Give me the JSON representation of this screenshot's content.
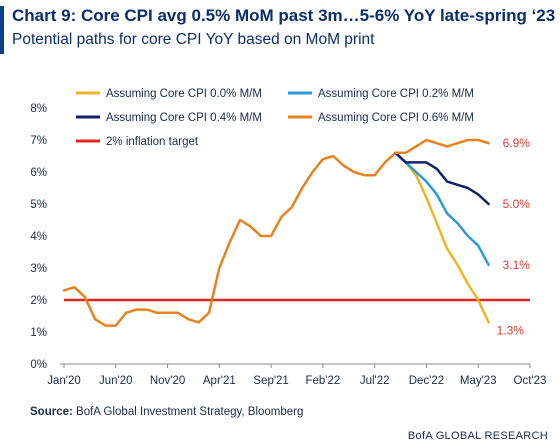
{
  "header": {
    "title": "Chart 9: Core CPI avg 0.5% MoM past 3m…5-6% YoY late-spring ‘23",
    "subtitle": "Potential paths for core CPI YoY based on MoM print"
  },
  "footer": {
    "source_label": "Source:",
    "source_text": "BofA Global Investment Strategy, Bloomberg",
    "brand": "BofA GLOBAL RESEARCH"
  },
  "colors": {
    "accent": "#0a3f8c",
    "orange": "#e8821e",
    "yellow": "#f0b323",
    "blue": "#2a9bd8",
    "navy": "#13226b",
    "red": "#e32424",
    "annotation": "#e8382f"
  },
  "chart_data": {
    "type": "line",
    "x_tick_labels": [
      "Jan'20",
      "Jun'20",
      "Nov'20",
      "Apr'21",
      "Sep'21",
      "Feb'22",
      "Jul'22",
      "Dec'22",
      "May'23",
      "Oct'23"
    ],
    "xlim": [
      "2020-01",
      "2023-10"
    ],
    "ylim": [
      0,
      8
    ],
    "y_tick_labels": [
      "0%",
      "1%",
      "2%",
      "3%",
      "4%",
      "5%",
      "6%",
      "7%",
      "8%"
    ],
    "grid": false,
    "legend_position": "top",
    "history": {
      "name": "Assuming Core CPI 0.6% M/M",
      "x": [
        "2020-01",
        "2020-02",
        "2020-03",
        "2020-04",
        "2020-05",
        "2020-06",
        "2020-07",
        "2020-08",
        "2020-09",
        "2020-10",
        "2020-11",
        "2020-12",
        "2021-01",
        "2021-02",
        "2021-03",
        "2021-04",
        "2021-05",
        "2021-06",
        "2021-07",
        "2021-08",
        "2021-09",
        "2021-10",
        "2021-11",
        "2021-12",
        "2022-01",
        "2022-02",
        "2022-03",
        "2022-04",
        "2022-05",
        "2022-06",
        "2022-07",
        "2022-08",
        "2022-09"
      ],
      "values": [
        2.3,
        2.4,
        2.1,
        1.4,
        1.2,
        1.2,
        1.6,
        1.7,
        1.7,
        1.6,
        1.6,
        1.6,
        1.4,
        1.3,
        1.6,
        3.0,
        3.8,
        4.5,
        4.3,
        4.0,
        4.0,
        4.6,
        4.9,
        5.5,
        6.0,
        6.4,
        6.5,
        6.2,
        6.0,
        5.9,
        5.9,
        6.3,
        6.6
      ]
    },
    "series": [
      {
        "name": "Assuming Core CPI 0.0% M/M",
        "color": "#f0b323",
        "x": [
          "2022-09",
          "2022-10",
          "2022-11",
          "2022-12",
          "2023-01",
          "2023-02",
          "2023-03",
          "2023-04",
          "2023-05",
          "2023-06"
        ],
        "values": [
          6.6,
          6.3,
          5.9,
          5.2,
          4.4,
          3.6,
          3.1,
          2.5,
          2.0,
          1.3
        ],
        "end_label": "1.3%"
      },
      {
        "name": "Assuming Core CPI 0.2% M/M",
        "color": "#2a9bd8",
        "x": [
          "2022-09",
          "2022-10",
          "2022-11",
          "2022-12",
          "2023-01",
          "2023-02",
          "2023-03",
          "2023-04",
          "2023-05",
          "2023-06"
        ],
        "values": [
          6.6,
          6.3,
          6.0,
          5.7,
          5.3,
          4.7,
          4.4,
          4.0,
          3.7,
          3.1
        ],
        "end_label": "3.1%"
      },
      {
        "name": "Assuming Core CPI 0.4% M/M",
        "color": "#13226b",
        "x": [
          "2022-09",
          "2022-10",
          "2022-11",
          "2022-12",
          "2023-01",
          "2023-02",
          "2023-03",
          "2023-04",
          "2023-05",
          "2023-06"
        ],
        "values": [
          6.6,
          6.3,
          6.3,
          6.3,
          6.1,
          5.7,
          5.6,
          5.5,
          5.3,
          5.0
        ],
        "end_label": "5.0%"
      },
      {
        "name": "Assuming Core CPI 0.6% M/M",
        "color": "#e8821e",
        "x": [
          "2022-09",
          "2022-10",
          "2022-11",
          "2022-12",
          "2023-01",
          "2023-02",
          "2023-03",
          "2023-04",
          "2023-05",
          "2023-06"
        ],
        "values": [
          6.6,
          6.6,
          6.8,
          7.0,
          6.9,
          6.8,
          6.9,
          7.0,
          7.0,
          6.9
        ],
        "end_label": "6.9%"
      }
    ],
    "reference_line": {
      "name": "2% inflation target",
      "value": 2.0,
      "color": "#e32424"
    }
  }
}
